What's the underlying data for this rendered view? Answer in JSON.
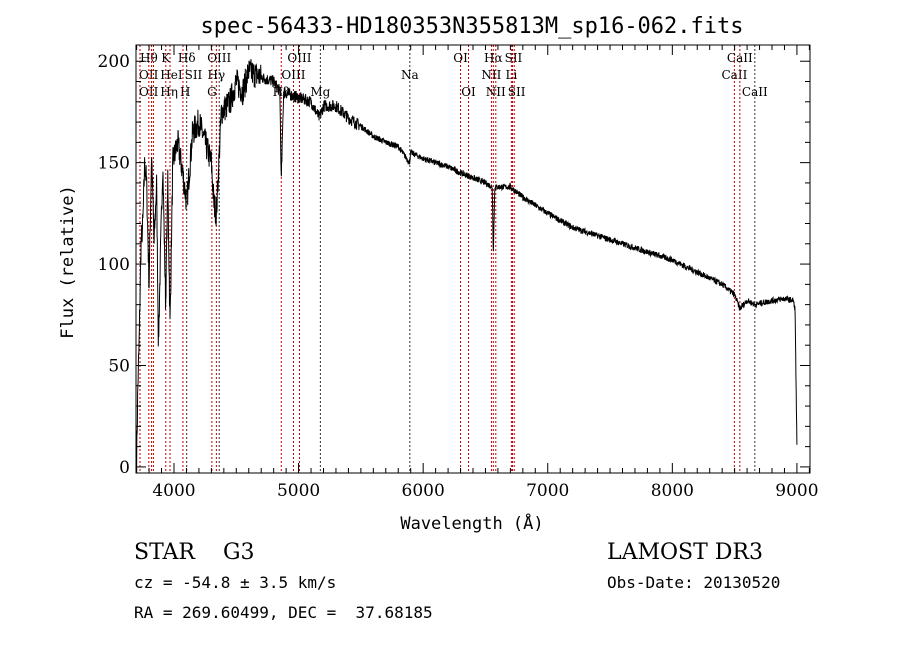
{
  "chart_data": {
    "type": "line",
    "title": "spec-56433-HD180353N355813M_sp16-062.fits",
    "xlabel": "Wavelength (Å)",
    "ylabel": "Flux (relative)",
    "xlim": [
      3695,
      9105
    ],
    "ylim": [
      -3,
      208
    ],
    "xticks": [
      4000,
      5000,
      6000,
      7000,
      8000,
      9000
    ],
    "yticks": [
      0,
      50,
      100,
      150,
      200
    ],
    "grid": false,
    "series": [
      {
        "name": "flux",
        "points": [
          [
            3700,
            5
          ],
          [
            3710,
            40
          ],
          [
            3720,
            60
          ],
          [
            3735,
            110
          ],
          [
            3750,
            120
          ],
          [
            3765,
            150
          ],
          [
            3780,
            140
          ],
          [
            3800,
            90
          ],
          [
            3820,
            155
          ],
          [
            3840,
            110
          ],
          [
            3860,
            140
          ],
          [
            3875,
            60
          ],
          [
            3890,
            100
          ],
          [
            3910,
            150
          ],
          [
            3933,
            80
          ],
          [
            3950,
            140
          ],
          [
            3968,
            70
          ],
          [
            3990,
            150
          ],
          [
            4030,
            160
          ],
          [
            4070,
            145
          ],
          [
            4102,
            130
          ],
          [
            4150,
            165
          ],
          [
            4200,
            170
          ],
          [
            4250,
            160
          ],
          [
            4300,
            150
          ],
          [
            4320,
            130
          ],
          [
            4340,
            125
          ],
          [
            4380,
            175
          ],
          [
            4450,
            180
          ],
          [
            4500,
            190
          ],
          [
            4550,
            185
          ],
          [
            4600,
            195
          ],
          [
            4700,
            192
          ],
          [
            4800,
            190
          ],
          [
            4850,
            185
          ],
          [
            4861,
            140
          ],
          [
            4880,
            185
          ],
          [
            4950,
            183
          ],
          [
            5000,
            182
          ],
          [
            5100,
            180
          ],
          [
            5167,
            172
          ],
          [
            5200,
            178
          ],
          [
            5300,
            178
          ],
          [
            5400,
            172
          ],
          [
            5500,
            168
          ],
          [
            5600,
            163
          ],
          [
            5700,
            160
          ],
          [
            5800,
            158
          ],
          [
            5890,
            150
          ],
          [
            5900,
            155
          ],
          [
            6000,
            152
          ],
          [
            6200,
            148
          ],
          [
            6300,
            145
          ],
          [
            6500,
            140
          ],
          [
            6555,
            138
          ],
          [
            6563,
            105
          ],
          [
            6575,
            138
          ],
          [
            6700,
            138
          ],
          [
            6800,
            133
          ],
          [
            7000,
            125
          ],
          [
            7200,
            118
          ],
          [
            7500,
            112
          ],
          [
            7800,
            106
          ],
          [
            8000,
            102
          ],
          [
            8200,
            96
          ],
          [
            8400,
            90
          ],
          [
            8498,
            85
          ],
          [
            8542,
            78
          ],
          [
            8600,
            82
          ],
          [
            8662,
            80
          ],
          [
            8800,
            82
          ],
          [
            8900,
            83
          ],
          [
            8970,
            82
          ],
          [
            8985,
            78
          ],
          [
            9000,
            10
          ]
        ]
      }
    ],
    "lines": [
      {
        "wl": 3727,
        "label": "OII",
        "row": 2,
        "color": "#c00000"
      },
      {
        "wl": 3727,
        "label": "OII",
        "row": 3,
        "color": "#c00000"
      },
      {
        "wl": 3798,
        "label": "Hθ",
        "row": 1,
        "color": "#c00000"
      },
      {
        "wl": 3820,
        "label": "HeI",
        "row": 2,
        "color": "#c00000"
      },
      {
        "wl": 3835,
        "label": "Hη",
        "row": 3,
        "color": "#c00000"
      },
      {
        "wl": 3934,
        "label": "K",
        "row": 1,
        "color": "#c00000"
      },
      {
        "wl": 3968,
        "label": "H",
        "row": 3,
        "color": "#c00000"
      },
      {
        "wl": 4072,
        "label": "SII",
        "row": 2,
        "color": "#c00000"
      },
      {
        "wl": 4102,
        "label": "Hδ",
        "row": 1,
        "color": "#333333"
      },
      {
        "wl": 4304,
        "label": "G",
        "row": 3,
        "color": "#c00000"
      },
      {
        "wl": 4340,
        "label": "Hγ",
        "row": 2,
        "color": "#c00000"
      },
      {
        "wl": 4363,
        "label": "OIII",
        "row": 1,
        "color": "#333333"
      },
      {
        "wl": 4861,
        "label": "Hβ",
        "row": 3,
        "color": "#c00000"
      },
      {
        "wl": 4959,
        "label": "OIII",
        "row": 2,
        "color": "#c00000"
      },
      {
        "wl": 5007,
        "label": "OIII",
        "row": 1,
        "color": "#c00000"
      },
      {
        "wl": 5175,
        "label": "Mg",
        "row": 3,
        "color": "#333333"
      },
      {
        "wl": 5893,
        "label": "Na",
        "row": 2,
        "color": "#333333"
      },
      {
        "wl": 6300,
        "label": "OI",
        "row": 1,
        "color": "#c00000"
      },
      {
        "wl": 6364,
        "label": "OI",
        "row": 3,
        "color": "#c00000"
      },
      {
        "wl": 6548,
        "label": "NII",
        "row": 2,
        "color": "#c00000"
      },
      {
        "wl": 6563,
        "label": "Hα",
        "row": 1,
        "color": "#c00000"
      },
      {
        "wl": 6583,
        "label": "NII",
        "row": 3,
        "color": "#c00000"
      },
      {
        "wl": 6708,
        "label": "Li",
        "row": 2,
        "color": "#c00000"
      },
      {
        "wl": 6717,
        "label": "SII",
        "row": 1,
        "color": "#c00000"
      },
      {
        "wl": 6731,
        "label": "SII",
        "row": 3,
        "color": "#c00000"
      },
      {
        "wl": 8498,
        "label": "CaII",
        "row": 2,
        "color": "#c00000"
      },
      {
        "wl": 8542,
        "label": "CaII",
        "row": 1,
        "color": "#c00000"
      },
      {
        "wl": 8662,
        "label": "CaII",
        "row": 3,
        "color": "#333333"
      }
    ]
  },
  "info": {
    "class": "STAR    G3",
    "cz": "cz = -54.8 ± 3.5 km/s",
    "coords": "RA = 269.60499, DEC =  37.68185",
    "survey": "LAMOST DR3",
    "obs_date": "Obs-Date: 20130520"
  }
}
